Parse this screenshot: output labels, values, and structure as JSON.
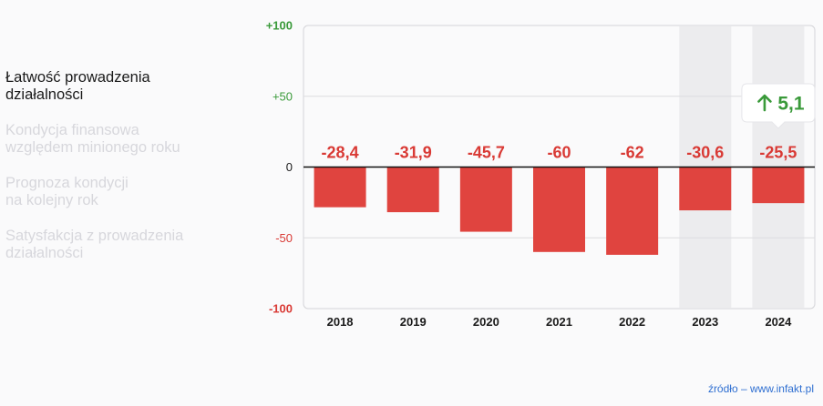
{
  "menu": {
    "items": [
      {
        "label": "Łatwość prowadzenia\ndziałalności",
        "active": true
      },
      {
        "label": "Kondycja finansowa\nwzględem minionego roku",
        "active": false
      },
      {
        "label": "Prognoza kondycji\nna kolejny rok",
        "active": false
      },
      {
        "label": "Satysfakcja z prowadzenia\ndziałalności",
        "active": false
      }
    ]
  },
  "source": "źródło – www.infakt.pl",
  "chart_data": {
    "type": "bar",
    "categories": [
      "2018",
      "2019",
      "2020",
      "2021",
      "2022",
      "2023",
      "2024"
    ],
    "values": [
      -28.4,
      -31.9,
      -45.7,
      -60,
      -62,
      -30.6,
      -25.5
    ],
    "value_labels": [
      "-28,4",
      "-31,9",
      "-45,7",
      "-60",
      "-62",
      "-30,6",
      "-25,5"
    ],
    "ylim": [
      -100,
      100
    ],
    "yticks": [
      100,
      50,
      0,
      -50,
      -100
    ],
    "ytick_labels": [
      "+100",
      "+50",
      "0",
      "-50",
      "-100"
    ],
    "highlighted_categories": [
      "2023",
      "2024"
    ],
    "callout": {
      "category": "2024",
      "text": "5,1",
      "direction": "up"
    },
    "grid": true,
    "colors": {
      "bar": "#e0443f",
      "positive": "#3a9a3a",
      "negative": "#d93a35",
      "highlight": "#ececee"
    }
  }
}
